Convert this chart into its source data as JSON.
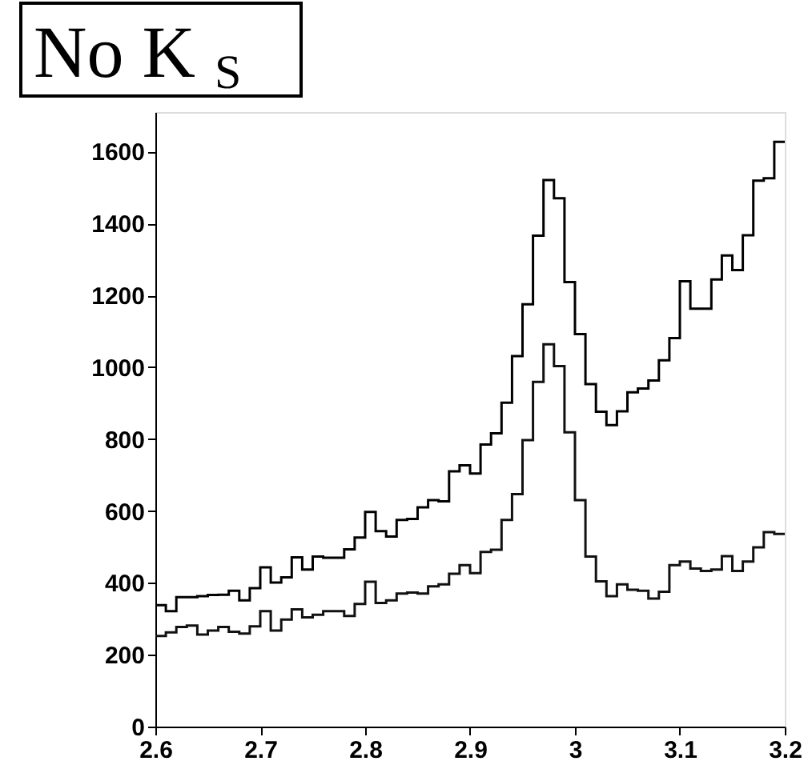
{
  "chart_data": {
    "type": "histogram",
    "title": "No K$_{S}$",
    "bins": [
      2.6,
      2.61,
      2.62,
      2.63,
      2.64,
      2.65,
      2.66,
      2.67,
      2.68,
      2.69,
      2.7,
      2.71,
      2.72,
      2.73,
      2.74,
      2.75,
      2.76,
      2.77,
      2.78,
      2.79,
      2.8,
      2.81,
      2.82,
      2.83,
      2.84,
      2.85,
      2.86,
      2.87,
      2.88,
      2.89,
      2.9,
      2.91,
      2.92,
      2.93,
      2.94,
      2.95,
      2.96,
      2.97,
      2.98,
      2.99,
      3.0,
      3.01,
      3.02,
      3.03,
      3.04,
      3.05,
      3.06,
      3.07,
      3.08,
      3.09,
      3.1,
      3.11,
      3.12,
      3.13,
      3.14,
      3.15,
      3.16,
      3.17,
      3.18,
      3.19,
      3.2
    ],
    "series": [
      {
        "color": "#000000",
        "values": [
          338,
          321,
          360,
          360,
          363,
          366,
          367,
          378,
          351,
          385,
          443,
          401,
          415,
          471,
          437,
          473,
          470,
          470,
          493,
          526,
          597,
          544,
          529,
          575,
          578,
          610,
          630,
          627,
          710,
          727,
          704,
          785,
          816,
          901,
          1031,
          1175,
          1366,
          1521,
          1470,
          1237,
          1092,
          953,
          876,
          839,
          877,
          930,
          941,
          963,
          1019,
          1081,
          1239,
          1163,
          1163,
          1244,
          1311,
          1270,
          1367,
          1519,
          1526,
          1627
        ]
      },
      {
        "color": "#111111",
        "values": [
          252,
          262,
          277,
          281,
          256,
          267,
          277,
          264,
          259,
          279,
          321,
          267,
          298,
          326,
          304,
          311,
          321,
          321,
          308,
          341,
          403,
          344,
          351,
          370,
          373,
          370,
          390,
          396,
          425,
          449,
          427,
          486,
          492,
          575,
          647,
          797,
          959,
          1064,
          1003,
          819,
          630,
          473,
          404,
          363,
          396,
          381,
          378,
          356,
          375,
          449,
          459,
          440,
          433,
          437,
          474,
          433,
          459,
          499,
          541,
          536
        ]
      }
    ],
    "xlim": [
      2.6,
      3.2
    ],
    "xticks": [
      2.6,
      2.7,
      2.8,
      2.9,
      3,
      3.1,
      3.2
    ],
    "ylim": [
      0,
      1710
    ],
    "yticks": [
      0,
      200,
      400,
      600,
      800,
      1000,
      1200,
      1400,
      1600
    ],
    "grid": false,
    "legend": false
  }
}
